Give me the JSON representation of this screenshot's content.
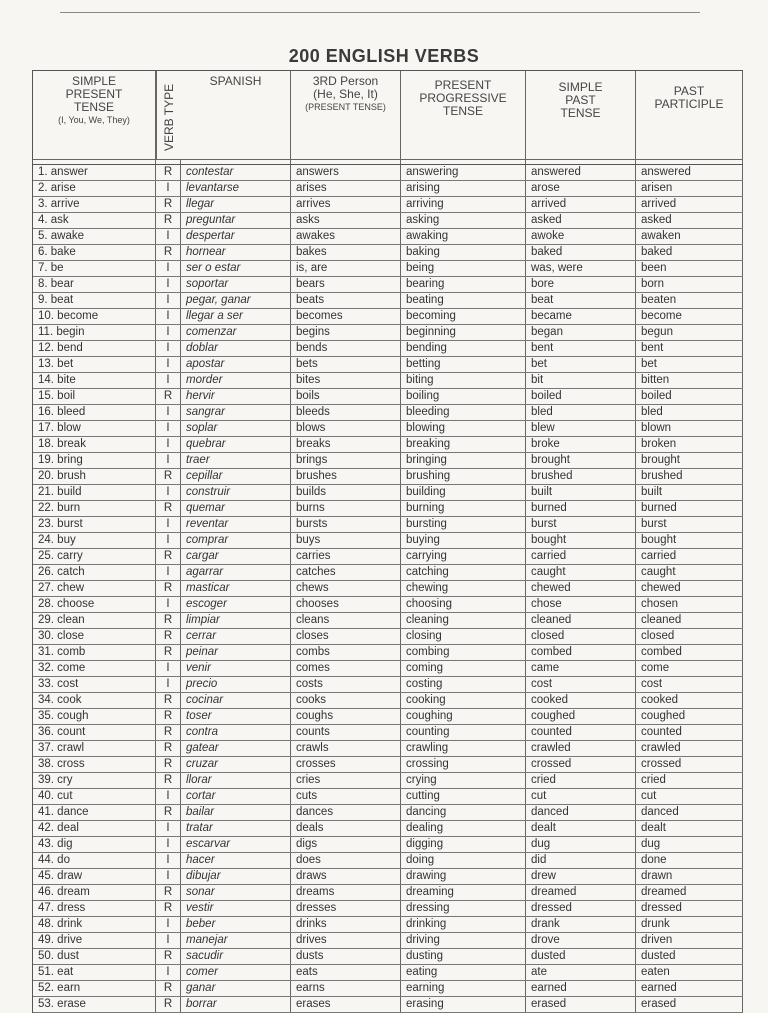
{
  "title": "200 ENGLISH VERBS",
  "headers": {
    "simple_present": "SIMPLE PRESENT TENSE",
    "simple_present_sub": "(I, You, We, They)",
    "verb_type": "VERB TYPE",
    "spanish": "SPANISH",
    "third_person": "3RD Person (He, She, It)",
    "third_person_sub": "(PRESENT TENSE)",
    "present_progressive": "PRESENT PROGRESSIVE TENSE",
    "simple_past": "SIMPLE PAST TENSE",
    "past_participle": "PAST PARTICIPLE"
  },
  "rows": [
    [
      "1. answer",
      "R",
      "contestar",
      "answers",
      "answering",
      "answered",
      "answered"
    ],
    [
      "2. arise",
      "I",
      "levantarse",
      "arises",
      "arising",
      "arose",
      "arisen"
    ],
    [
      "3. arrive",
      "R",
      "llegar",
      "arrives",
      "arriving",
      "arrived",
      "arrived"
    ],
    [
      "4. ask",
      "R",
      "preguntar",
      "asks",
      "asking",
      "asked",
      "asked"
    ],
    [
      "5. awake",
      "I",
      "despertar",
      "awakes",
      "awaking",
      "awoke",
      "awaken"
    ],
    [
      "6. bake",
      "R",
      "hornear",
      "bakes",
      "baking",
      "baked",
      "baked"
    ],
    [
      "7. be",
      "I",
      "ser o estar",
      "is, are",
      "being",
      "was, were",
      "been"
    ],
    [
      "8. bear",
      "I",
      "soportar",
      "bears",
      "bearing",
      "bore",
      "born"
    ],
    [
      "9. beat",
      "I",
      "pegar, ganar",
      "beats",
      "beating",
      "beat",
      "beaten"
    ],
    [
      "10. become",
      "I",
      "llegar a ser",
      "becomes",
      "becoming",
      "became",
      "become"
    ],
    [
      "11. begin",
      "I",
      "comenzar",
      "begins",
      "beginning",
      "began",
      "begun"
    ],
    [
      "12. bend",
      "I",
      "doblar",
      "bends",
      "bending",
      "bent",
      "bent"
    ],
    [
      "13. bet",
      "I",
      "apostar",
      "bets",
      "betting",
      "bet",
      "bet"
    ],
    [
      "14. bite",
      "I",
      "morder",
      "bites",
      "biting",
      "bit",
      "bitten"
    ],
    [
      "15. boil",
      "R",
      "hervir",
      "boils",
      "boiling",
      "boiled",
      "boiled"
    ],
    [
      "16. bleed",
      "I",
      "sangrar",
      "bleeds",
      "bleeding",
      "bled",
      "bled"
    ],
    [
      "17. blow",
      "I",
      "soplar",
      "blows",
      "blowing",
      "blew",
      "blown"
    ],
    [
      "18. break",
      "I",
      "quebrar",
      "breaks",
      "breaking",
      "broke",
      "broken"
    ],
    [
      "19. bring",
      "I",
      "traer",
      "brings",
      "bringing",
      "brought",
      "brought"
    ],
    [
      "20. brush",
      "R",
      "cepillar",
      "brushes",
      "brushing",
      "brushed",
      "brushed"
    ],
    [
      "21. build",
      "I",
      "construir",
      "builds",
      "building",
      "built",
      "built"
    ],
    [
      "22. burn",
      "R",
      "quemar",
      "burns",
      "burning",
      "burned",
      "burned"
    ],
    [
      "23. burst",
      "I",
      "reventar",
      "bursts",
      "bursting",
      "burst",
      "burst"
    ],
    [
      "24. buy",
      "I",
      "comprar",
      "buys",
      "buying",
      "bought",
      "bought"
    ],
    [
      "25. carry",
      "R",
      "cargar",
      "carries",
      "carrying",
      "carried",
      "carried"
    ],
    [
      "26. catch",
      "I",
      "agarrar",
      "catches",
      "catching",
      "caught",
      "caught"
    ],
    [
      "27. chew",
      "R",
      "masticar",
      "chews",
      "chewing",
      "chewed",
      "chewed"
    ],
    [
      "28. choose",
      "I",
      "escoger",
      "chooses",
      "choosing",
      "chose",
      "chosen"
    ],
    [
      "29. clean",
      "R",
      "limpiar",
      "cleans",
      "cleaning",
      "cleaned",
      "cleaned"
    ],
    [
      "30. close",
      "R",
      "cerrar",
      "closes",
      "closing",
      "closed",
      "closed"
    ],
    [
      "31. comb",
      "R",
      "peinar",
      "combs",
      "combing",
      "combed",
      "combed"
    ],
    [
      "32. come",
      "I",
      "venir",
      "comes",
      "coming",
      "came",
      "come"
    ],
    [
      "33. cost",
      "I",
      "precio",
      "costs",
      "costing",
      "cost",
      "cost"
    ],
    [
      "34. cook",
      "R",
      "cocinar",
      "cooks",
      "cooking",
      "cooked",
      "cooked"
    ],
    [
      "35. cough",
      "R",
      "toser",
      "coughs",
      "coughing",
      "coughed",
      "coughed"
    ],
    [
      "36. count",
      "R",
      "contra",
      "counts",
      "counting",
      "counted",
      "counted"
    ],
    [
      "37. crawl",
      "R",
      "gatear",
      "crawls",
      "crawling",
      "crawled",
      "crawled"
    ],
    [
      "38. cross",
      "R",
      "cruzar",
      "crosses",
      "crossing",
      "crossed",
      "crossed"
    ],
    [
      "39. cry",
      "R",
      "llorar",
      "cries",
      "crying",
      "cried",
      "cried"
    ],
    [
      "40. cut",
      "I",
      "cortar",
      "cuts",
      "cutting",
      "cut",
      "cut"
    ],
    [
      "41. dance",
      "R",
      "bailar",
      "dances",
      "dancing",
      "danced",
      "danced"
    ],
    [
      "42. deal",
      "I",
      "tratar",
      "deals",
      "dealing",
      "dealt",
      "dealt"
    ],
    [
      "43. dig",
      "I",
      "escarvar",
      "digs",
      "digging",
      "dug",
      "dug"
    ],
    [
      "44. do",
      "I",
      "hacer",
      "does",
      "doing",
      "did",
      "done"
    ],
    [
      "45. draw",
      "I",
      "dibujar",
      "draws",
      "drawing",
      "drew",
      "drawn"
    ],
    [
      "46. dream",
      "R",
      "sonar",
      "dreams",
      "dreaming",
      "dreamed",
      "dreamed"
    ],
    [
      "47. dress",
      "R",
      "vestir",
      "dresses",
      "dressing",
      "dressed",
      "dressed"
    ],
    [
      "48. drink",
      "I",
      "beber",
      "drinks",
      "drinking",
      "drank",
      "drunk"
    ],
    [
      "49. drive",
      "I",
      "manejar",
      "drives",
      "driving",
      "drove",
      "driven"
    ],
    [
      "50. dust",
      "R",
      "sacudir",
      "dusts",
      "dusting",
      "dusted",
      "dusted"
    ],
    [
      "51. eat",
      "I",
      "comer",
      "eats",
      "eating",
      "ate",
      "eaten"
    ],
    [
      "52. earn",
      "R",
      "ganar",
      "earns",
      "earning",
      "earned",
      "earned"
    ],
    [
      "53. erase",
      "R",
      "borrar",
      "erases",
      "erasing",
      "erased",
      "erased"
    ]
  ]
}
